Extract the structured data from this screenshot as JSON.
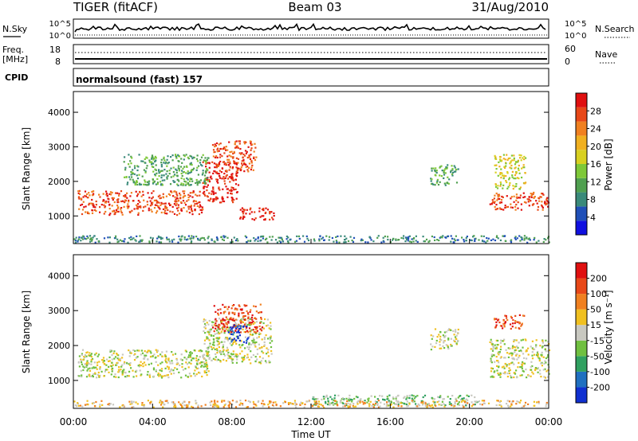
{
  "header": {
    "left_title": "TIGER (fitACF)",
    "center_title": "Beam 03",
    "right_date": "31/Aug/2010"
  },
  "strip_panels": {
    "nsky": {
      "left_label": "N.Sky",
      "left_ticks": [
        "10^5",
        "10^0"
      ],
      "right_label": "N.Search",
      "right_ticks": [
        "10^5",
        "10^0"
      ]
    },
    "freq": {
      "left_label_1": "Freq.",
      "left_label_2": "[MHz]",
      "left_ticks": [
        "18",
        "8"
      ],
      "right_label": "Nave",
      "right_ticks": [
        "60",
        "0"
      ]
    },
    "cpid": {
      "left_label": "CPID",
      "text": "normalsound (fast) 157"
    }
  },
  "chart_data": [
    {
      "type": "heatmap",
      "title": "",
      "quantity": "Power",
      "ylabel": "Slant Range [km]",
      "ylim": [
        200,
        4600
      ],
      "yticks": [
        "1000",
        "2000",
        "3000",
        "4000"
      ],
      "xlim_hours": [
        0,
        24
      ],
      "colorbar": {
        "label": "Power [dB]",
        "ticks": [
          "4",
          "8",
          "12",
          "16",
          "20",
          "24",
          "28"
        ],
        "colors": [
          "#1010e0",
          "#2050b8",
          "#3a8a7a",
          "#50a050",
          "#7ec838",
          "#d8d020",
          "#f0b020",
          "#f08020",
          "#e84818",
          "#e01010"
        ]
      },
      "echo_regions": [
        {
          "t0": 0.2,
          "t1": 6.5,
          "r0": 1050,
          "r1": 1750,
          "level": 8
        },
        {
          "t0": 6.5,
          "t1": 8.3,
          "r0": 1400,
          "r1": 2600,
          "level": 9
        },
        {
          "t0": 8.3,
          "t1": 10.1,
          "r0": 900,
          "r1": 1250,
          "level": 9
        },
        {
          "t0": 7.0,
          "t1": 9.2,
          "r0": 2300,
          "r1": 3200,
          "level": 8
        },
        {
          "t0": 2.5,
          "t1": 6.8,
          "r0": 1900,
          "r1": 2800,
          "level": 3
        },
        {
          "t0": 18.0,
          "t1": 19.4,
          "r0": 1900,
          "r1": 2500,
          "level": 3
        },
        {
          "t0": 21.0,
          "t1": 24.0,
          "r0": 1200,
          "r1": 1700,
          "level": 8
        },
        {
          "t0": 21.2,
          "t1": 22.8,
          "r0": 1800,
          "r1": 2800,
          "level": 5
        },
        {
          "t0": 0.0,
          "t1": 24.0,
          "r0": 250,
          "r1": 450,
          "level": 2
        }
      ]
    },
    {
      "type": "heatmap",
      "title": "",
      "quantity": "Velocity",
      "ylabel": "Slant Range [km]",
      "ylim": [
        200,
        4600
      ],
      "yticks": [
        "1000",
        "2000",
        "3000",
        "4000"
      ],
      "xlim_hours": [
        0,
        24
      ],
      "xticks": [
        "00:00",
        "04:00",
        "08:00",
        "12:00",
        "16:00",
        "20:00",
        "00:00"
      ],
      "xlabel": "Time UT",
      "colorbar": {
        "label": "Velocity [m s⁻¹]",
        "ticks": [
          "200",
          "100",
          "50",
          "15",
          "-15",
          "-50",
          "-100",
          "-200"
        ],
        "colors": [
          "#1030d0",
          "#2070c0",
          "#30a060",
          "#70c040",
          "#c8c8c0",
          "#f0c020",
          "#f08020",
          "#e84818",
          "#e01010"
        ]
      },
      "echo_regions": [
        {
          "t0": 0.2,
          "t1": 6.8,
          "r0": 1100,
          "r1": 1900,
          "level": 4
        },
        {
          "t0": 6.5,
          "t1": 10.0,
          "r0": 1500,
          "r1": 2800,
          "level": 4
        },
        {
          "t0": 7.0,
          "t1": 9.5,
          "r0": 2400,
          "r1": 3200,
          "level": 7
        },
        {
          "t0": 7.8,
          "t1": 8.8,
          "r0": 2100,
          "r1": 2600,
          "level": 0
        },
        {
          "t0": 18.0,
          "t1": 19.4,
          "r0": 1900,
          "r1": 2500,
          "level": 4
        },
        {
          "t0": 21.0,
          "t1": 24.0,
          "r0": 1100,
          "r1": 2200,
          "level": 4
        },
        {
          "t0": 21.2,
          "t1": 22.8,
          "r0": 2500,
          "r1": 2900,
          "level": 7
        },
        {
          "t0": 12.0,
          "t1": 20.5,
          "r0": 300,
          "r1": 600,
          "level": 3
        },
        {
          "t0": 0.0,
          "t1": 24.0,
          "r0": 250,
          "r1": 450,
          "level": 5
        }
      ]
    }
  ]
}
